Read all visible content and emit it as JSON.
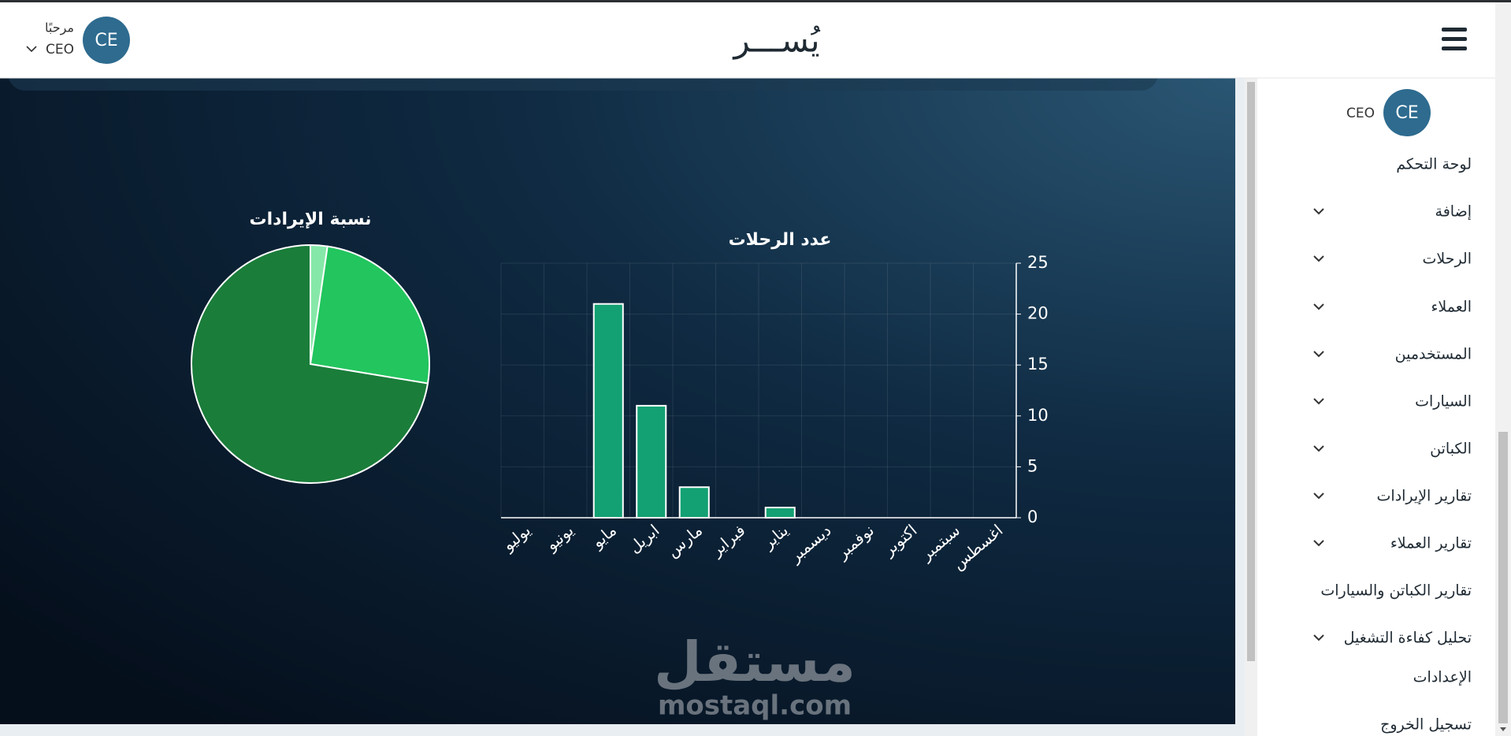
{
  "header": {
    "logo": "يُســـر",
    "greeting": "مرحبًا",
    "user_role": "CEO",
    "avatar": "CE"
  },
  "sidebar": {
    "avatar": "CE",
    "user_role": "CEO",
    "items": [
      {
        "label": "لوحة التحكم",
        "expandable": false
      },
      {
        "label": "إضافة",
        "expandable": true
      },
      {
        "label": "الرحلات",
        "expandable": true
      },
      {
        "label": "العملاء",
        "expandable": true
      },
      {
        "label": "المستخدمين",
        "expandable": true
      },
      {
        "label": "السيارات",
        "expandable": true
      },
      {
        "label": "الكباتن",
        "expandable": true
      },
      {
        "label": "تقارير الإيرادات",
        "expandable": true
      },
      {
        "label": "تقارير العملاء",
        "expandable": true
      },
      {
        "label": "تقارير الكباتن والسيارات",
        "expandable": false
      },
      {
        "label": "تحليل كفاءة التشغيل",
        "expandable": true
      },
      {
        "label": "الإعدادات",
        "expandable": false
      },
      {
        "label": "تسجيل الخروج",
        "expandable": false
      }
    ]
  },
  "watermark": {
    "arabic": "مستقل",
    "latin": "mostaql.com"
  },
  "chart_data": [
    {
      "type": "bar",
      "title": "عدد الرحلات",
      "categories": [
        "يوليو",
        "يونيو",
        "مايو",
        "ابريل",
        "مارس",
        "فبراير",
        "يناير",
        "ديسمبر",
        "نوفمبر",
        "اكتوبر",
        "سبتمبر",
        "اغسطس"
      ],
      "values": [
        0,
        0,
        21,
        11,
        3,
        0,
        1,
        0,
        0,
        0,
        0,
        0
      ],
      "color": "#13a073",
      "ylim": [
        0,
        25
      ],
      "yticks": [
        0,
        5,
        10,
        15,
        20,
        25
      ],
      "grid": true,
      "y_axis_side": "right"
    },
    {
      "type": "pie",
      "title": "نسبة الإيرادات",
      "categories": [
        null,
        null,
        null
      ],
      "values": [
        2.3,
        25.3,
        72.4
      ],
      "colors": [
        "#86e8a8",
        "#22c55e",
        "#1a7d3a"
      ]
    }
  ]
}
